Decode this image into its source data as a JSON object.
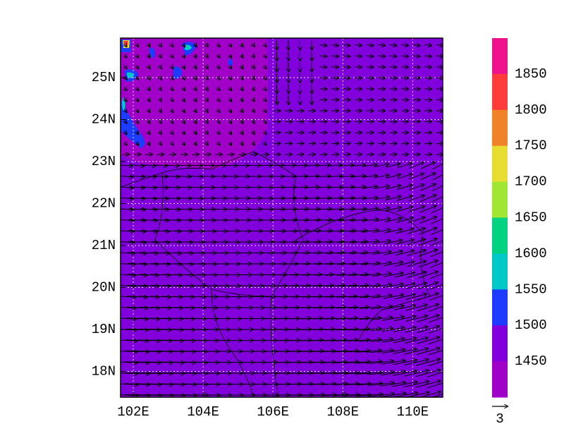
{
  "map": {
    "lon_ticks": [
      "102E",
      "104E",
      "106E",
      "108E",
      "110E"
    ],
    "lat_ticks": [
      "25N",
      "24N",
      "23N",
      "22N",
      "21N",
      "20N",
      "19N",
      "18N"
    ]
  },
  "colorbar": {
    "labels": [
      "1850",
      "1800",
      "1750",
      "1700",
      "1650",
      "1600",
      "1550",
      "1500",
      "1450"
    ],
    "colors": [
      "#f0148c",
      "#ff3c3c",
      "#f08228",
      "#e6dc32",
      "#a0e632",
      "#00d282",
      "#00c8c8",
      "#1e3cff",
      "#8200dc",
      "#a000c8"
    ]
  },
  "vector_reference": "3"
}
